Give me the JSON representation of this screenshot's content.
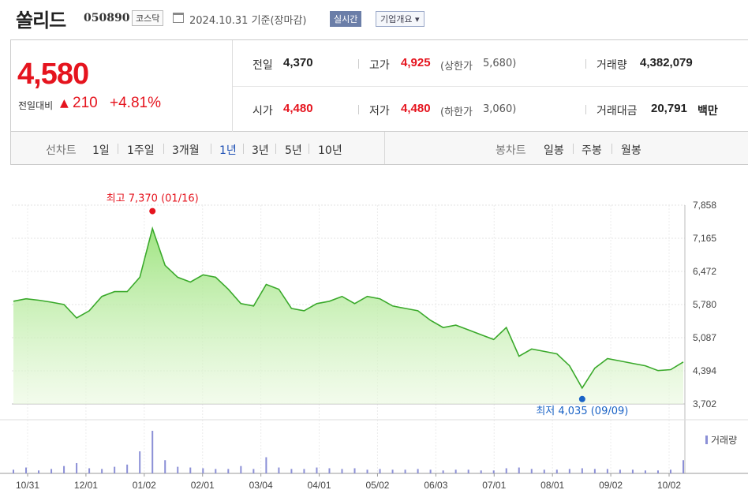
{
  "stock": {
    "name": "쏠리드",
    "code": "050890",
    "market": "코스닥",
    "date": "2024.10.31 기준(장마감)",
    "realtime_label": "실시간",
    "company_button": "기업개요 ▾"
  },
  "summary": {
    "current_price": "4,580",
    "change_label": "전일대비",
    "change_arrow": "▲",
    "change_amount": "210",
    "change_percent": "+4.81%",
    "prev_close_label": "전일",
    "prev_close": "4,370",
    "open_label": "시가",
    "open": "4,480",
    "high_label": "고가",
    "high": "4,925",
    "upper_limit_label": "(상한가",
    "upper_limit": "5,680)",
    "low_label": "저가",
    "low": "4,480",
    "lower_limit_label": "(하한가",
    "lower_limit": "3,060)",
    "volume_label": "거래량",
    "volume": "4,382,079",
    "trade_value_label": "거래대금",
    "trade_value": "20,791",
    "trade_value_unit": "백만"
  },
  "line_chart": {
    "label": "선차트",
    "periods": [
      "1일",
      "1주일",
      "3개월",
      "1년",
      "3년",
      "5년",
      "10년"
    ],
    "selected": "1년"
  },
  "candle_chart": {
    "label": "봉차트",
    "periods": [
      "일봉",
      "주봉",
      "월봉"
    ]
  },
  "colors": {
    "price_up": "#e5141e",
    "selected": "#1c4fb4",
    "line": "#3aa92b",
    "high_marker": "#e5141e",
    "low_marker": "#1a63c6",
    "volume": "#8b8fd6"
  },
  "chart_data": {
    "type": "area",
    "title": "",
    "x_tick_labels": [
      "10/31",
      "12/01",
      "01/02",
      "02/01",
      "03/04",
      "04/01",
      "05/02",
      "06/03",
      "07/01",
      "08/01",
      "09/02",
      "10/02"
    ],
    "y_tick_labels": [
      "7,858",
      "7,165",
      "6,472",
      "5,780",
      "5,087",
      "4,394",
      "3,702"
    ],
    "ylim": [
      3702,
      7858
    ],
    "high_annotation": "최고 7,370 (01/16)",
    "low_annotation": "최저 4,035 (09/09)",
    "volume_legend": "거래량",
    "series": [
      {
        "x": [
          "10/31",
          "11/07",
          "11/14",
          "11/21",
          "11/28",
          "12/05",
          "12/12",
          "12/19",
          "12/26",
          "01/02",
          "01/09",
          "01/16",
          "01/23",
          "01/30",
          "02/06",
          "02/13",
          "02/20",
          "02/27",
          "03/05",
          "03/12",
          "03/19",
          "03/26",
          "04/02",
          "04/09",
          "04/16",
          "04/23",
          "04/30",
          "05/07",
          "05/14",
          "05/21",
          "05/28",
          "06/04",
          "06/11",
          "06/18",
          "06/25",
          "07/02",
          "07/09",
          "07/16",
          "07/23",
          "07/30",
          "08/06",
          "08/13",
          "08/20",
          "08/27",
          "09/03",
          "09/09",
          "09/16",
          "09/23",
          "09/30",
          "10/07",
          "10/14",
          "10/21",
          "10/28",
          "10/31"
        ],
        "values": [
          5850,
          5900,
          5870,
          5830,
          5780,
          5500,
          5650,
          5950,
          6050,
          6050,
          6350,
          7370,
          6600,
          6350,
          6250,
          6400,
          6350,
          6100,
          5800,
          5750,
          6200,
          6100,
          5700,
          5650,
          5800,
          5850,
          5950,
          5800,
          5950,
          5900,
          5750,
          5700,
          5650,
          5450,
          5300,
          5350,
          5250,
          5150,
          5050,
          5300,
          4700,
          4850,
          4800,
          4750,
          4500,
          4035,
          4450,
          4650,
          4600,
          4550,
          4500,
          4400,
          4420,
          4580
        ]
      }
    ],
    "volume": [
      5,
      8,
      4,
      6,
      10,
      14,
      7,
      6,
      9,
      12,
      30,
      58,
      18,
      9,
      8,
      7,
      6,
      6,
      10,
      6,
      22,
      8,
      6,
      6,
      8,
      7,
      6,
      7,
      5,
      6,
      5,
      5,
      6,
      5,
      4,
      5,
      5,
      4,
      4,
      7,
      8,
      6,
      5,
      5,
      6,
      7,
      6,
      6,
      5,
      5,
      4,
      4,
      5,
      18
    ]
  }
}
